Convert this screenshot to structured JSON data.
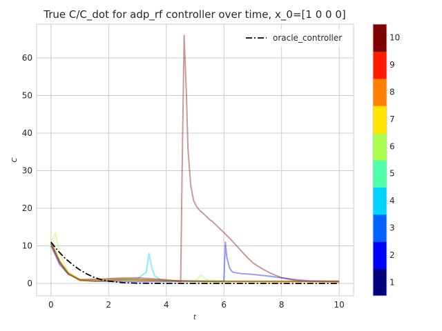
{
  "chart_data": {
    "type": "line",
    "title": "True C/C_dot for adp_rf controller over time, x_0=[1 0 0 0]",
    "xlabel": "t",
    "ylabel": "C",
    "xlim": [
      -0.5,
      10.5
    ],
    "ylim": [
      -3.3,
      69
    ],
    "x_ticks": [
      0,
      2,
      4,
      6,
      8,
      10
    ],
    "y_ticks": [
      0,
      10,
      20,
      30,
      40,
      50,
      60
    ],
    "grid": true,
    "legend": {
      "position": "top-right",
      "entries": [
        "oracle_controller"
      ]
    },
    "colorbar": {
      "ticks": [
        1,
        2,
        3,
        4,
        5,
        6,
        7,
        8,
        9,
        10
      ],
      "colors": [
        "#00007f",
        "#0000ff",
        "#0063ff",
        "#00d4ff",
        "#4effa8",
        "#a8ff4e",
        "#ffe500",
        "#ff7f00",
        "#ff1a00",
        "#7f0000"
      ]
    },
    "series": [
      {
        "name": "oracle_controller",
        "color": "#000000",
        "dash": "dashdot",
        "x": [
          0,
          0.25,
          0.5,
          0.75,
          1.0,
          1.25,
          1.5,
          1.75,
          2.0,
          2.5,
          3,
          4,
          5,
          6,
          7,
          8,
          9,
          10
        ],
        "y": [
          11,
          8.6,
          6.6,
          5.0,
          3.6,
          2.5,
          1.6,
          1.0,
          0.6,
          0.2,
          0.05,
          0,
          0,
          0,
          0,
          0,
          0,
          0
        ]
      },
      {
        "color": "#00d4ff",
        "opacity": 0.45,
        "x": [
          0,
          0.3,
          0.6,
          1.0,
          1.5,
          2.0,
          3.0,
          3.3,
          3.4,
          3.5,
          3.6,
          3.8,
          4.0,
          6,
          8,
          10
        ],
        "y": [
          10.5,
          5.5,
          2.5,
          1.0,
          1.0,
          1.2,
          1.2,
          3,
          8,
          4,
          2,
          1,
          0.7,
          0.6,
          0.5,
          0.5
        ]
      },
      {
        "color": "#a8ff4e",
        "opacity": 0.45,
        "x": [
          0,
          0.1,
          0.15,
          0.3,
          0.6,
          1.0,
          2.0,
          3.0,
          4.0,
          5.0,
          5.2,
          5.4,
          6.0,
          8,
          10
        ],
        "y": [
          11,
          12.5,
          13.5,
          8,
          3,
          1,
          0.8,
          0.7,
          0.6,
          0.6,
          2.2,
          1.0,
          0.7,
          0.6,
          0.6
        ]
      },
      {
        "color": "#ffe500",
        "opacity": 0.4,
        "x": [
          0,
          0.3,
          0.6,
          1.0,
          2.0,
          3.0,
          4.0,
          5.0,
          6.0,
          8,
          10
        ],
        "y": [
          10,
          6,
          3,
          1.2,
          0.8,
          0.7,
          0.6,
          0.6,
          0.5,
          0.5,
          0.5
        ]
      },
      {
        "color": "#0000ff",
        "opacity": 0.4,
        "x": [
          0,
          0.3,
          0.6,
          1.0,
          1.5,
          2.0,
          3.0,
          4.0,
          5.0,
          6.0,
          6.05,
          6.1,
          6.2,
          6.3,
          6.6,
          7.0,
          7.5,
          8.0,
          8.5,
          9.0,
          10.0
        ],
        "y": [
          10,
          5,
          2.5,
          1.0,
          0.6,
          0.5,
          0.5,
          0.5,
          0.5,
          0.5,
          11,
          7,
          4,
          3,
          2.6,
          2.4,
          2,
          1.5,
          1.0,
          0.7,
          0.5
        ]
      },
      {
        "color": "#7f0000",
        "opacity": 0.4,
        "x": [
          0,
          0.3,
          0.6,
          1.0,
          2.0,
          3.0,
          4.0,
          4.5,
          4.55,
          4.62,
          4.7,
          4.75,
          4.85,
          4.95,
          5.05,
          5.15,
          5.3,
          5.5,
          5.6,
          5.8,
          6.0,
          6.2,
          6.5,
          6.8,
          7.0,
          7.3,
          7.6,
          8.0,
          8.5,
          9.0,
          10.0
        ],
        "y": [
          10.5,
          5.5,
          2.5,
          1.0,
          1.2,
          1.5,
          1.0,
          0.5,
          30,
          66,
          50,
          36,
          26,
          22,
          20.5,
          19.5,
          18.5,
          17,
          16.5,
          15,
          13.5,
          12,
          9.5,
          7,
          5.5,
          4,
          2.8,
          1.5,
          0.8,
          0.5,
          0.4
        ]
      },
      {
        "color": "#ff7f00",
        "opacity": 0.45,
        "x": [
          0,
          0.3,
          0.6,
          1.0,
          1.5,
          2.0,
          2.5,
          3.0,
          4.0,
          6,
          8,
          10
        ],
        "y": [
          11,
          6,
          2.8,
          1.0,
          0.9,
          1.3,
          1.5,
          1.2,
          0.8,
          0.6,
          0.6,
          0.6
        ]
      },
      {
        "color": "#9a5b22",
        "opacity": 0.7,
        "x": [
          0,
          0.3,
          0.6,
          1.0,
          1.5,
          2.0,
          2.5,
          3.0,
          4.0,
          5.0,
          6.0,
          8.0,
          10.0
        ],
        "y": [
          10.8,
          5.8,
          2.6,
          0.8,
          0.6,
          0.8,
          1.0,
          1.0,
          0.8,
          0.6,
          0.5,
          0.5,
          0.6
        ]
      }
    ]
  }
}
